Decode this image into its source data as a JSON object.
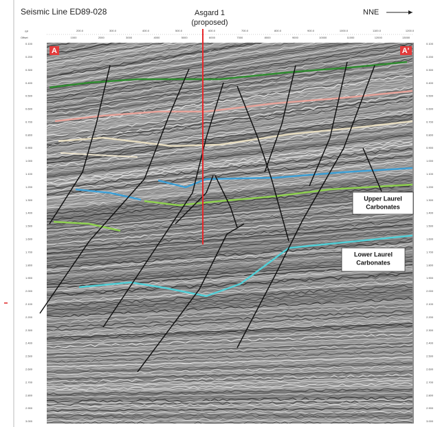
{
  "header": {
    "title": "Seismic Line ED89-028",
    "well": "Asgard 1",
    "well_status": "(proposed)",
    "direction": "NNE"
  },
  "markers": {
    "left": "A",
    "right": "A'"
  },
  "axes": {
    "sp_label": "SP",
    "offset_label": "Offset",
    "sp_ticks": [
      "200.0",
      "300.0",
      "400.0",
      "500.0",
      "600.0",
      "700.0",
      "800.0",
      "900.0",
      "1000.0",
      "1100.0",
      "1200.0"
    ],
    "offset_ticks": [
      "1000",
      "2000",
      "3000",
      "4000",
      "5000",
      "6000",
      "7000",
      "8000",
      "9000",
      "10000",
      "11000",
      "12000",
      "13000"
    ],
    "time_ticks": [
      "0.100",
      "0.200",
      "0.300",
      "0.400",
      "0.500",
      "0.600",
      "0.700",
      "0.800",
      "0.900",
      "1.000",
      "1.100",
      "1.200",
      "1.300",
      "1.400",
      "1.500",
      "1.600",
      "1.700",
      "1.800",
      "1.900",
      "2.000",
      "2.100",
      "2.200",
      "2.300",
      "2.400",
      "2.500",
      "2.600",
      "2.700",
      "2.800",
      "2.900",
      "3.000"
    ]
  },
  "annotations": {
    "upper": [
      "Upper Laurel",
      "Carbonates"
    ],
    "lower": [
      "Lower Laurel",
      "Carbonates"
    ]
  }
}
